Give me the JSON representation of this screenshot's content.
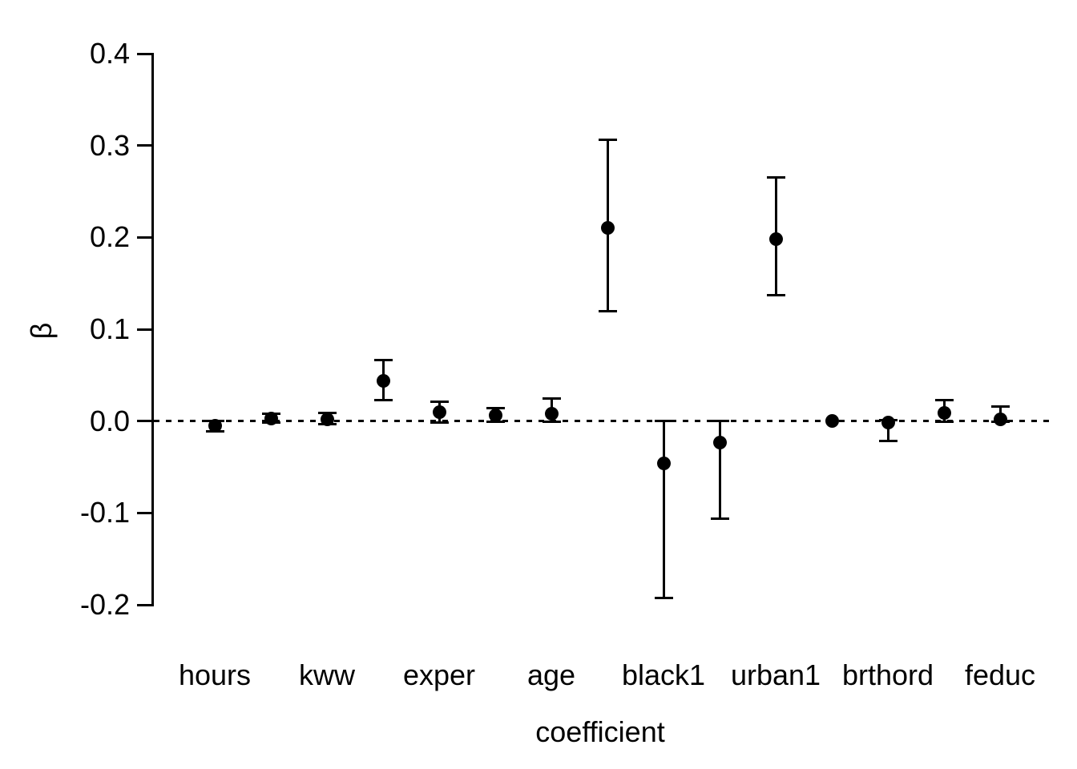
{
  "figure": {
    "background_color": "#ffffff",
    "foreground_color": "#000000"
  },
  "chart_data": {
    "type": "scatter",
    "subtype": "coefficient-plot-with-error-bars",
    "title": "",
    "xlabel": "coefficient",
    "ylabel": "β",
    "ylim": [
      -0.2,
      0.4
    ],
    "yticks": [
      0.4,
      0.3,
      0.2,
      0.1,
      0.0,
      -0.1,
      -0.2
    ],
    "ytick_labels": [
      "0.4",
      "0.3",
      "0.2",
      "0.1",
      "0.0",
      "-0.1",
      "-0.2"
    ],
    "grid": false,
    "legend": false,
    "zero_reference_line": {
      "y": 0,
      "style": "dotted"
    },
    "points": [
      {
        "x_index": 1,
        "label": "hours",
        "beta": -0.005,
        "ci_low": -0.011,
        "ci_high": 0.0
      },
      {
        "x_index": 2,
        "label": "",
        "beta": 0.003,
        "ci_low": -0.002,
        "ci_high": 0.008
      },
      {
        "x_index": 3,
        "label": "kww",
        "beta": 0.002,
        "ci_low": -0.003,
        "ci_high": 0.009
      },
      {
        "x_index": 4,
        "label": "",
        "beta": 0.044,
        "ci_low": 0.023,
        "ci_high": 0.066
      },
      {
        "x_index": 5,
        "label": "exper",
        "beta": 0.01,
        "ci_low": -0.002,
        "ci_high": 0.021
      },
      {
        "x_index": 6,
        "label": "",
        "beta": 0.006,
        "ci_low": -0.001,
        "ci_high": 0.014
      },
      {
        "x_index": 7,
        "label": "age",
        "beta": 0.008,
        "ci_low": -0.001,
        "ci_high": 0.025
      },
      {
        "x_index": 8,
        "label": "",
        "beta": 0.21,
        "ci_low": 0.12,
        "ci_high": 0.306
      },
      {
        "x_index": 9,
        "label": "black1",
        "beta": -0.046,
        "ci_low": -0.193,
        "ci_high": 0.0
      },
      {
        "x_index": 10,
        "label": "",
        "beta": -0.023,
        "ci_low": -0.106,
        "ci_high": 0.0
      },
      {
        "x_index": 11,
        "label": "urban1",
        "beta": 0.198,
        "ci_low": 0.137,
        "ci_high": 0.265
      },
      {
        "x_index": 12,
        "label": "",
        "beta": 0.0,
        "ci_low": 0.0,
        "ci_high": 0.0
      },
      {
        "x_index": 13,
        "label": "brthord",
        "beta": -0.002,
        "ci_low": -0.022,
        "ci_high": 0.001
      },
      {
        "x_index": 14,
        "label": "",
        "beta": 0.009,
        "ci_low": -0.001,
        "ci_high": 0.023
      },
      {
        "x_index": 15,
        "label": "feduc",
        "beta": 0.002,
        "ci_low": -0.001,
        "ci_high": 0.016
      }
    ]
  }
}
